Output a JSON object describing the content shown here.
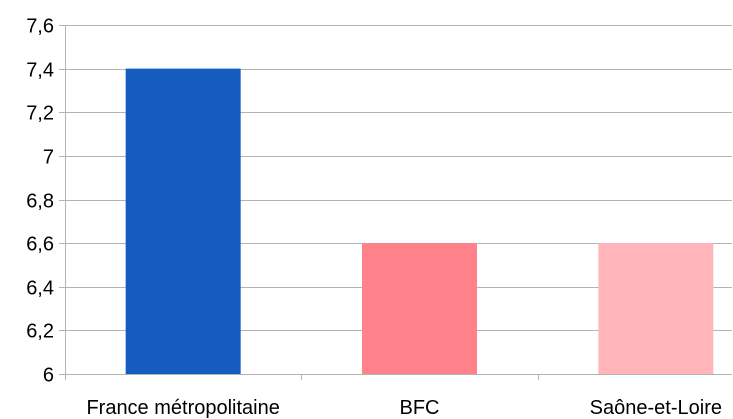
{
  "chart_data": {
    "type": "bar",
    "categories": [
      "France métropolitaine",
      "BFC",
      "Saône-et-Loire"
    ],
    "values": [
      7.4,
      6.6,
      6.6
    ],
    "colors": [
      "#155cc1",
      "#ff8189",
      "#ffb5b9"
    ],
    "ylim": [
      6,
      7.6
    ],
    "yticks": [
      6,
      6.2,
      6.4,
      6.6,
      6.8,
      7,
      7.2,
      7.4,
      7.6
    ],
    "ytick_labels": [
      "6",
      "6,2",
      "6,4",
      "6,6",
      "6,8",
      "7",
      "7,2",
      "7,4",
      "7,6"
    ],
    "grid": true,
    "title": "",
    "xlabel": "",
    "ylabel": ""
  }
}
